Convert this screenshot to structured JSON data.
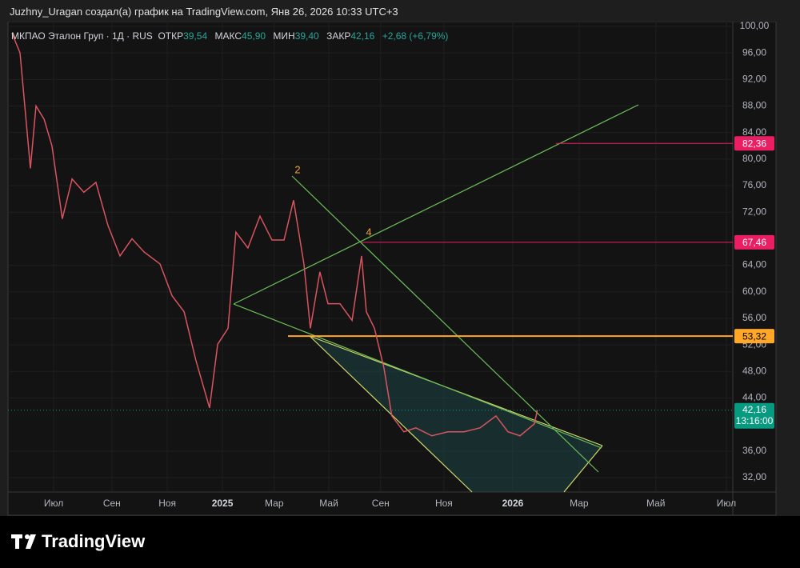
{
  "header": {
    "text": "Juzhny_Uragan создал(а) график на TradingView.com, Янв 26, 2026 10:33 UTC+3"
  },
  "legend": {
    "symbol": "МКПАО Эталон Груп · 1Д · RUS",
    "open_label": "ОТКР",
    "open": "39,54",
    "high_label": "МАКС",
    "high": "45,90",
    "low_label": "МИН",
    "low": "39,40",
    "close_label": "ЗАКР",
    "close": "42,16",
    "change": "+2,68 (+6,79%)"
  },
  "chart_data": {
    "type": "line",
    "color": "#d9545f",
    "x": [
      0.14,
      0.43,
      0.8,
      1,
      1.29,
      1.57,
      1.94,
      2.29,
      2.71,
      3.14,
      3.57,
      4,
      4.43,
      4.86,
      5.43,
      5.86,
      6.29,
      6.71,
      7.2,
      7.49,
      7.86,
      8.14,
      8.57,
      9,
      9.43,
      9.86,
      10.2,
      10.57,
      10.8,
      11.14,
      11.43,
      11.86,
      12.29,
      12.63,
      12.8,
      13.09,
      13.43,
      13.71,
      14.14,
      14.57,
      15.14,
      15.71,
      16.29,
      16.86,
      17.43,
      17.86,
      18.29,
      18.8,
      18.91
    ],
    "values": [
      99,
      96,
      78.6,
      88,
      86,
      82,
      71,
      77,
      75,
      76.5,
      70,
      65.4,
      68,
      66,
      64.2,
      59.4,
      57,
      49.7,
      42.5,
      52.1,
      54.5,
      69,
      66.6,
      71.4,
      67.8,
      67.8,
      73.8,
      64.2,
      54.5,
      63,
      58.2,
      58.2,
      55.7,
      65.4,
      57,
      54.5,
      48.5,
      41.3,
      38.9,
      39.5,
      38.3,
      38.9,
      38.9,
      39.5,
      41.3,
      38.9,
      38.3,
      40.1,
      42.16
    ],
    "xlim": [
      0,
      25.89
    ],
    "xticks": [
      {
        "value": 1.63,
        "label": "Июл"
      },
      {
        "value": 3.71,
        "label": "Сен"
      },
      {
        "value": 5.69,
        "label": "Ноя"
      },
      {
        "value": 7.66,
        "label": "2025"
      },
      {
        "value": 9.51,
        "label": "Мар"
      },
      {
        "value": 11.46,
        "label": "Май"
      },
      {
        "value": 13.31,
        "label": "Сен"
      },
      {
        "value": 15.57,
        "label": "Ноя"
      },
      {
        "value": 18.03,
        "label": "2026"
      },
      {
        "value": 20.4,
        "label": "Мар"
      },
      {
        "value": 23.14,
        "label": "Май"
      },
      {
        "value": 25.66,
        "label": "Июл"
      }
    ],
    "ylim": [
      29.83,
      100.72
    ],
    "yticks": [
      {
        "value": 100,
        "label": "100,00"
      },
      {
        "value": 96,
        "label": "96,00"
      },
      {
        "value": 92,
        "label": "92,00"
      },
      {
        "value": 88,
        "label": "88,00"
      },
      {
        "value": 84,
        "label": "84,00"
      },
      {
        "value": 80,
        "label": "80,00"
      },
      {
        "value": 76,
        "label": "76,00"
      },
      {
        "value": 72,
        "label": "72,00"
      },
      {
        "value": 64,
        "label": "64,00"
      },
      {
        "value": 60,
        "label": "60,00"
      },
      {
        "value": 56,
        "label": "56,00"
      },
      {
        "value": 52,
        "label": "52,00"
      },
      {
        "value": 48,
        "label": "48,00"
      },
      {
        "value": 44,
        "label": "44,00"
      },
      {
        "value": 36,
        "label": "36,00"
      },
      {
        "value": 32,
        "label": "32,00"
      }
    ],
    "price_labels": [
      {
        "value": 82.36,
        "label": "82,36",
        "color": "#e91e63"
      },
      {
        "value": 67.46,
        "label": "67,46",
        "color": "#e91e63"
      },
      {
        "value": 53.32,
        "label": "53,32",
        "color": "#ffa726"
      }
    ],
    "last_price": {
      "value": 42.16,
      "label": "42,16",
      "countdown": "13:16:00",
      "color": "#089981"
    },
    "annotations": [
      "2",
      "4"
    ]
  },
  "footer": {
    "brand": "TradingView"
  }
}
